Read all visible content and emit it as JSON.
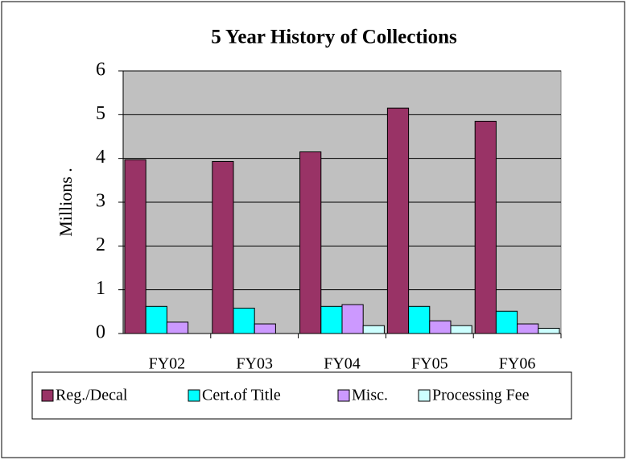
{
  "chart_data": {
    "type": "bar",
    "title": "5 Year History of Collections",
    "y_label": "Millions .",
    "categories": [
      "FY02",
      "FY03",
      "FY04",
      "FY05",
      "FY06"
    ],
    "series": [
      {
        "name": "Reg./Decal",
        "color": "#993366",
        "values": [
          3.97,
          3.93,
          4.15,
          5.15,
          4.85
        ]
      },
      {
        "name": "Cert.of Title",
        "color": "#00ffff",
        "values": [
          0.62,
          0.58,
          0.62,
          0.62,
          0.51
        ]
      },
      {
        "name": "Misc.",
        "color": "#cc99ff",
        "values": [
          0.26,
          0.22,
          0.66,
          0.29,
          0.22
        ]
      },
      {
        "name": "Processing Fee",
        "color": "#ccffff",
        "values": [
          0,
          0,
          0.18,
          0.18,
          0.12
        ]
      }
    ],
    "ylim": [
      0,
      6
    ],
    "yticks": [
      0,
      1,
      2,
      3,
      4,
      5,
      6
    ],
    "grid": true,
    "plot_background": "#c0c0c0",
    "legend": "bottom"
  }
}
